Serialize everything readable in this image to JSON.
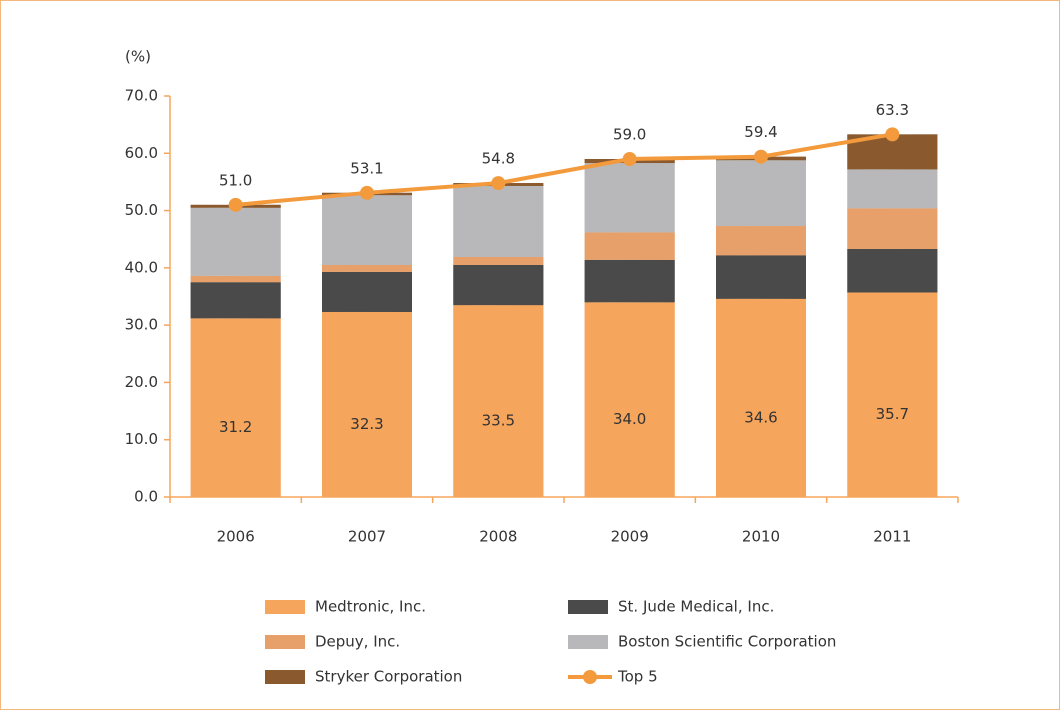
{
  "chart_data": {
    "type": "bar",
    "stacked": true,
    "ylabel": "(%)",
    "categories": [
      "2006",
      "2007",
      "2008",
      "2009",
      "2010",
      "2011"
    ],
    "ylim": [
      0,
      70
    ],
    "yticks": [
      {
        "value": 0,
        "label": "0.0"
      },
      {
        "value": 10,
        "label": "10.0"
      },
      {
        "value": 20,
        "label": "20.0"
      },
      {
        "value": 30,
        "label": "30.0"
      },
      {
        "value": 40,
        "label": "40.0"
      },
      {
        "value": 50,
        "label": "50.0"
      },
      {
        "value": 60,
        "label": "60.0"
      },
      {
        "value": 70,
        "label": "70.0"
      }
    ],
    "series": [
      {
        "name": "Medtronic, Inc.",
        "color": "#f5a55c",
        "values": [
          31.2,
          32.3,
          33.5,
          34.0,
          34.6,
          35.7
        ],
        "value_labels": [
          "31.2",
          "32.3",
          "33.5",
          "34.0",
          "34.6",
          "35.7"
        ]
      },
      {
        "name": "St. Jude Medical, Inc.",
        "color": "#4a4a4a",
        "values": [
          6.3,
          7.0,
          7.0,
          7.4,
          7.6,
          7.6
        ]
      },
      {
        "name": "Depuy, Inc.",
        "color": "#e8a06a",
        "values": [
          1.1,
          1.2,
          1.4,
          4.8,
          5.1,
          7.1
        ]
      },
      {
        "name": "Boston Scientific Corporation",
        "color": "#b8b8ba",
        "values": [
          11.9,
          12.2,
          12.4,
          12.1,
          11.5,
          6.8
        ]
      },
      {
        "name": "Stryker Corporation",
        "color": "#8a5a2e",
        "values": [
          0.5,
          0.4,
          0.5,
          0.7,
          0.6,
          6.1
        ]
      },
      {
        "name": "Top 5",
        "type": "line",
        "color": "#f39a3c",
        "values": [
          51.0,
          53.1,
          54.8,
          59.0,
          59.4,
          63.3
        ],
        "value_labels": [
          "51.0",
          "53.1",
          "54.8",
          "59.0",
          "59.4",
          "63.3"
        ]
      }
    ]
  }
}
